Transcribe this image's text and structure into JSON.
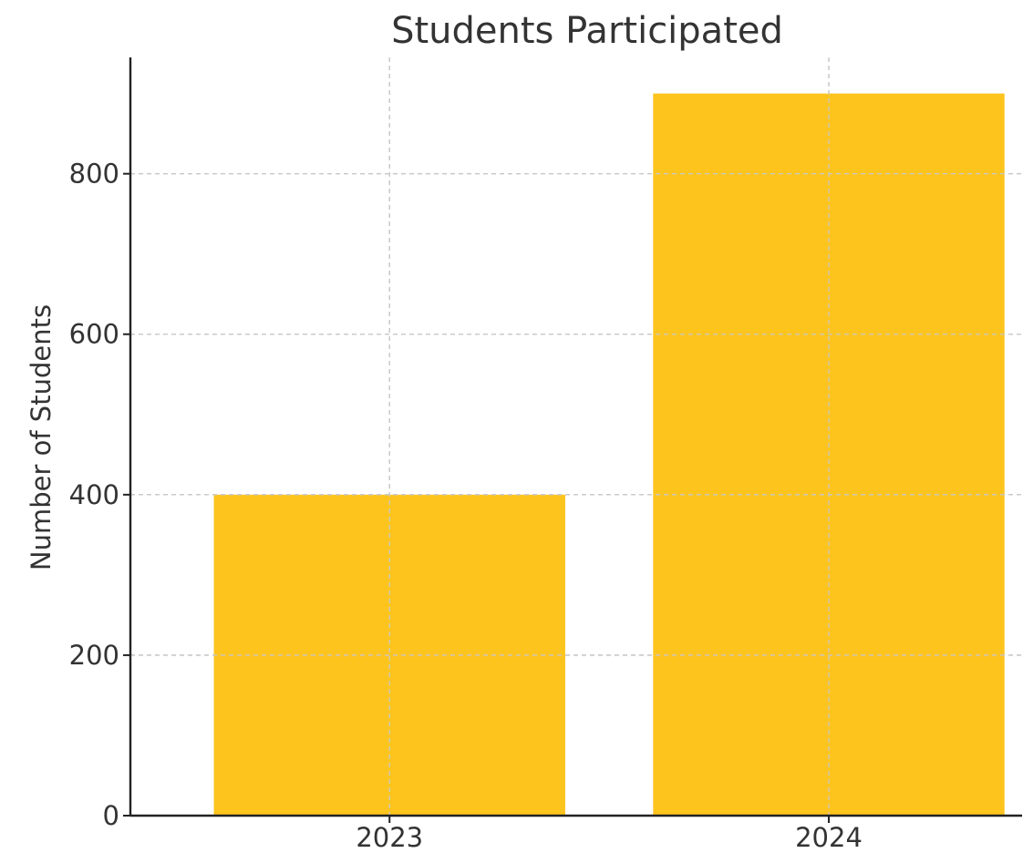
{
  "chart_data": {
    "type": "bar",
    "title": "Students Participated",
    "xlabel": "",
    "ylabel": "Number of Students",
    "categories": [
      "2023",
      "2024"
    ],
    "values": [
      400,
      900
    ],
    "ylim": [
      0,
      945
    ],
    "yticks": [
      0,
      200,
      400,
      600,
      800
    ],
    "grid": true,
    "bar_color": "#fdc41e"
  }
}
